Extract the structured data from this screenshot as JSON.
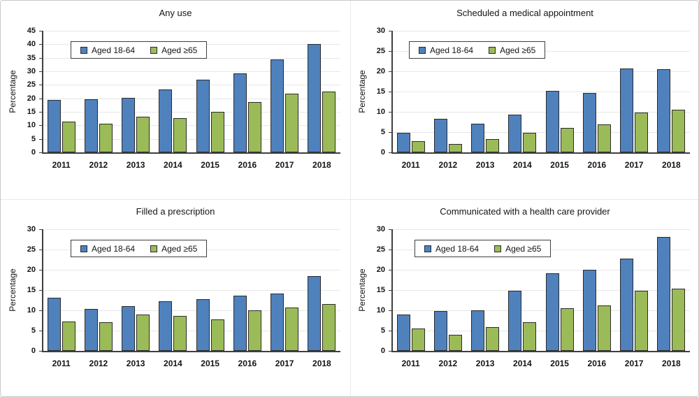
{
  "page": {
    "background": "#ffffff",
    "frame_border_color": "#c8c8c8",
    "panel_divider_color": "#e8e8e8"
  },
  "legend": {
    "items": [
      {
        "label": "Aged 18-64",
        "color": "#4F81BD"
      },
      {
        "label": "Aged ≥65",
        "color": "#9BBB59"
      }
    ]
  },
  "chart_data": [
    {
      "type": "bar",
      "title": "Any use",
      "xlabel": "",
      "ylabel": "Percentage",
      "categories": [
        "2011",
        "2012",
        "2013",
        "2014",
        "2015",
        "2016",
        "2017",
        "2018"
      ],
      "ylim": [
        0,
        45
      ],
      "ytick_step": 5,
      "grid": true,
      "legend_position": "top-left-inside",
      "series": [
        {
          "name": "Aged 18-64",
          "color": "#4F81BD",
          "values": [
            19.3,
            19.7,
            20.2,
            23.3,
            26.9,
            29.2,
            34.4,
            40.2
          ]
        },
        {
          "name": "Aged ≥65",
          "color": "#9BBB59",
          "values": [
            11.4,
            10.7,
            13.2,
            12.6,
            15.1,
            18.5,
            21.8,
            22.6
          ]
        }
      ]
    },
    {
      "type": "bar",
      "title": "Scheduled a medical appointment",
      "xlabel": "",
      "ylabel": "Percentage",
      "categories": [
        "2011",
        "2012",
        "2013",
        "2014",
        "2015",
        "2016",
        "2017",
        "2018"
      ],
      "ylim": [
        0,
        30
      ],
      "ytick_step": 5,
      "grid": true,
      "legend_position": "top-left-inside",
      "series": [
        {
          "name": "Aged 18-64",
          "color": "#4F81BD",
          "values": [
            4.9,
            8.3,
            7.0,
            9.3,
            15.1,
            14.6,
            20.7,
            20.5
          ]
        },
        {
          "name": "Aged ≥65",
          "color": "#9BBB59",
          "values": [
            2.8,
            2.1,
            3.2,
            4.8,
            6.1,
            6.9,
            9.9,
            10.6
          ]
        }
      ]
    },
    {
      "type": "bar",
      "title": "Filled a prescription",
      "xlabel": "",
      "ylabel": "Percentage",
      "categories": [
        "2011",
        "2012",
        "2013",
        "2014",
        "2015",
        "2016",
        "2017",
        "2018"
      ],
      "ylim": [
        0,
        30
      ],
      "ytick_step": 5,
      "grid": true,
      "legend_position": "top-left-inside",
      "series": [
        {
          "name": "Aged 18-64",
          "color": "#4F81BD",
          "values": [
            13.1,
            10.4,
            11.0,
            12.3,
            12.8,
            13.7,
            14.2,
            18.5
          ]
        },
        {
          "name": "Aged ≥65",
          "color": "#9BBB59",
          "values": [
            7.3,
            7.1,
            8.9,
            8.6,
            7.8,
            10.0,
            10.7,
            11.6
          ]
        }
      ]
    },
    {
      "type": "bar",
      "title": "Communicated with a health care provider",
      "xlabel": "",
      "ylabel": "Percentage",
      "categories": [
        "2011",
        "2012",
        "2013",
        "2014",
        "2015",
        "2016",
        "2017",
        "2018"
      ],
      "ylim": [
        0,
        30
      ],
      "ytick_step": 5,
      "grid": true,
      "legend_position": "top-left-inside",
      "series": [
        {
          "name": "Aged 18-64",
          "color": "#4F81BD",
          "values": [
            9.0,
            9.8,
            10.0,
            14.9,
            19.2,
            20.0,
            22.8,
            28.1
          ]
        },
        {
          "name": "Aged ≥65",
          "color": "#9BBB59",
          "values": [
            5.5,
            4.0,
            5.9,
            7.0,
            10.5,
            11.2,
            14.9,
            15.4
          ]
        }
      ]
    }
  ]
}
